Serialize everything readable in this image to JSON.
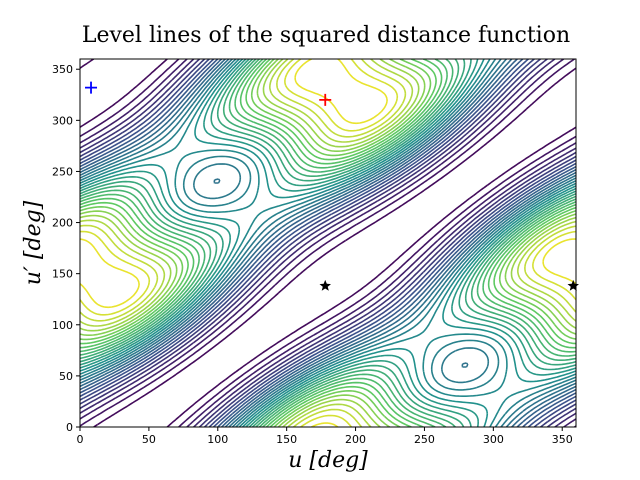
{
  "chart_data": {
    "type": "contour",
    "title": "Level lines of the squared distance function",
    "x_label": "u [deg]",
    "y_label": "u′ [deg]",
    "xlim": [
      0,
      360
    ],
    "ylim": [
      0,
      360
    ],
    "xticks": [
      0,
      50,
      100,
      150,
      200,
      250,
      300,
      350
    ],
    "yticks": [
      0,
      50,
      100,
      150,
      200,
      250,
      300,
      350
    ],
    "colormap": "viridis",
    "points": [
      {
        "x": 8,
        "y": 332,
        "color": "#0000ff",
        "marker": "plus"
      },
      {
        "x": 178,
        "y": 320,
        "color": "#ff0000",
        "marker": "plus"
      },
      {
        "x": 178,
        "y": 138,
        "color": "#000000",
        "marker": "star"
      },
      {
        "x": 358,
        "y": 138,
        "color": "#000000",
        "marker": "star"
      }
    ]
  }
}
